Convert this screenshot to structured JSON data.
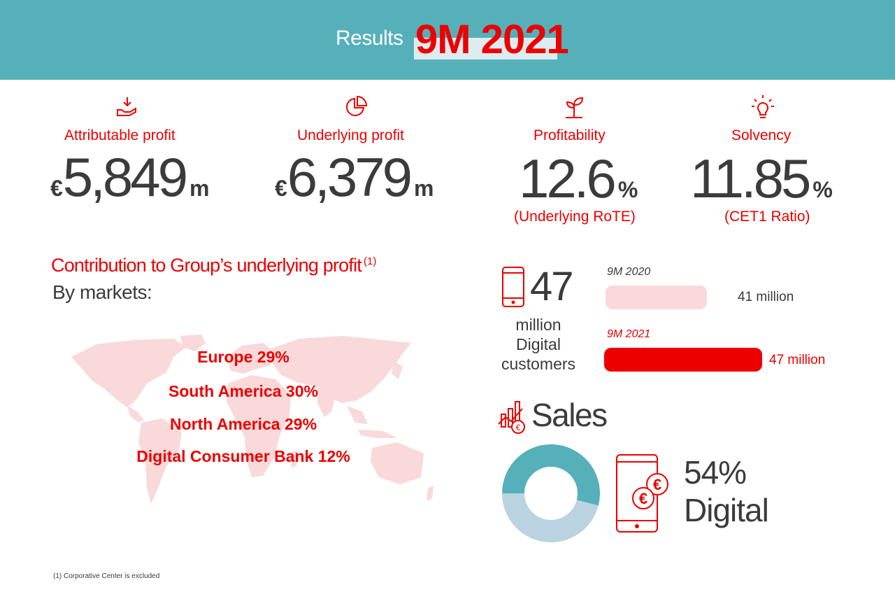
{
  "banner": {
    "results_label": "Results",
    "period": "9M 2021"
  },
  "kpis": [
    {
      "title": "Attributable profit",
      "currency": "€",
      "value": "5,849",
      "unit": "m",
      "icon": "hand-coin-icon"
    },
    {
      "title": "Underlying profit",
      "currency": "€",
      "value": "6,379",
      "unit": "m",
      "icon": "pie-chart-icon"
    },
    {
      "title": "Profitability",
      "value": "12.6",
      "unit": "%",
      "subtitle": "(Underlying RoTE)",
      "icon": "sprout-icon"
    },
    {
      "title": "Solvency",
      "value": "11.85",
      "unit": "%",
      "subtitle": "(CET1 Ratio)",
      "icon": "lightbulb-icon"
    }
  ],
  "contribution": {
    "title": "Contribution to Group’s underlying profit",
    "note_ref": "(1)",
    "subtitle": "By markets:",
    "markets": [
      "Europe 29%",
      "South America 30%",
      "North America 29%",
      "Digital Consumer Bank 12%"
    ]
  },
  "digital_customers": {
    "value": "47",
    "label_lines": [
      "million",
      "Digital",
      "customers"
    ],
    "bars": [
      {
        "period": "9M 2020",
        "value": 41,
        "value_label": "41 million",
        "color": "#f9d9d9"
      },
      {
        "period": "9M 2021",
        "value": 47,
        "value_label": "47 million",
        "color": "#ec0000"
      }
    ]
  },
  "sales": {
    "title": "Sales",
    "digital_share": 54,
    "pct_label": "54%",
    "digital_label": "Digital",
    "colors": {
      "digital": "#55b0ba",
      "other": "#b9d3e0"
    }
  },
  "footnote": "(1) Corporative Center is excluded",
  "colors": {
    "accent": "#ec0000",
    "teal": "#55b0ba",
    "map": "#f9d9d9"
  }
}
